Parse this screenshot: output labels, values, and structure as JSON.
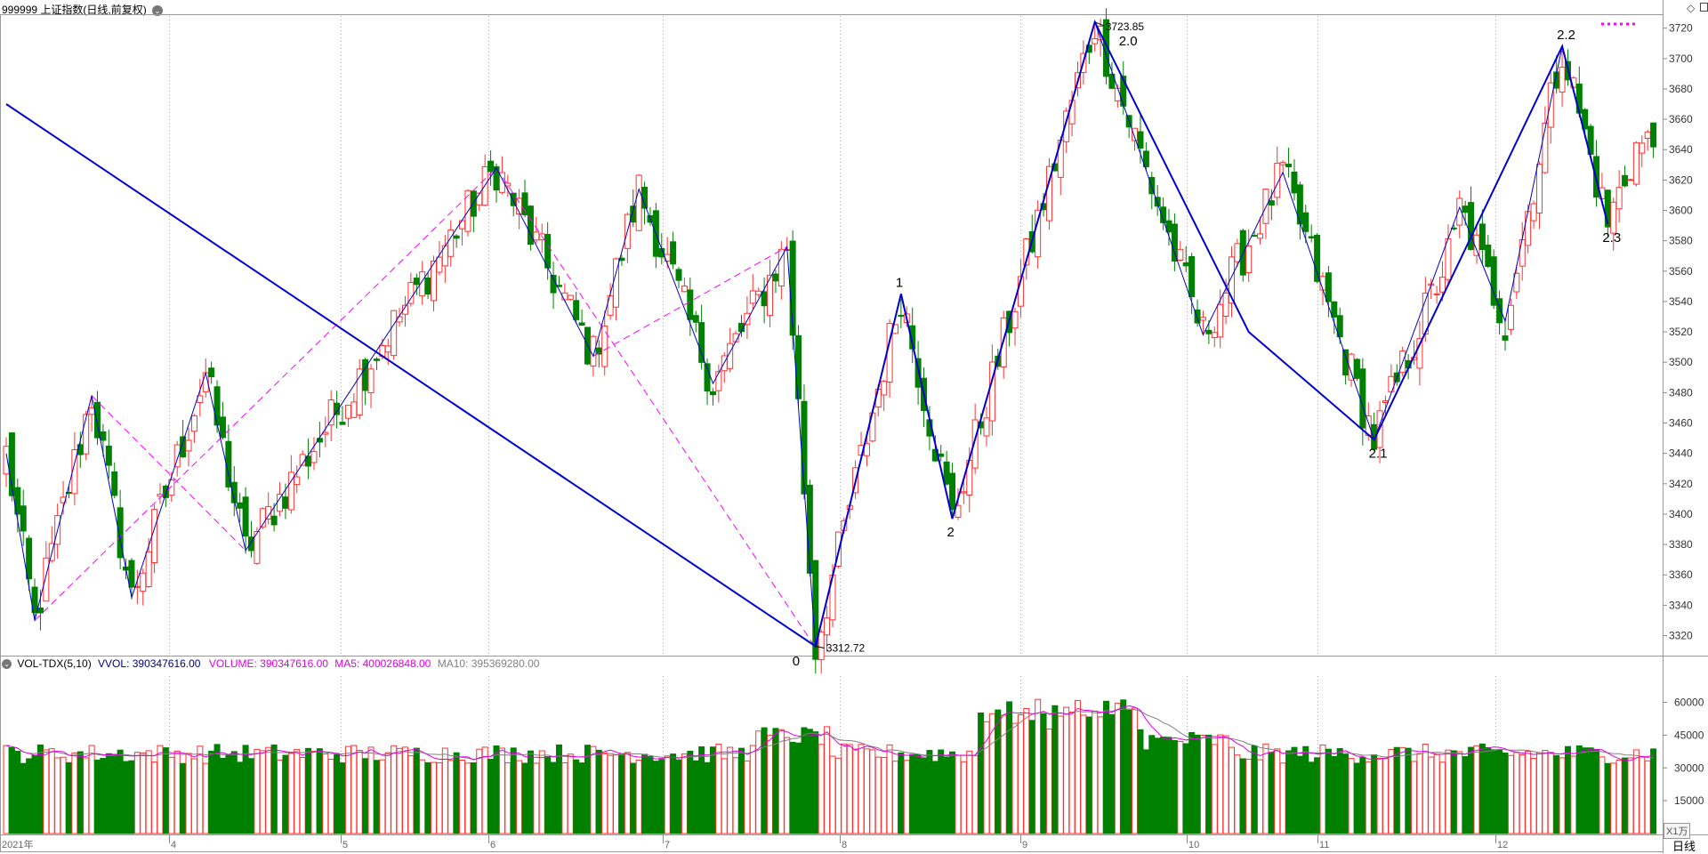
{
  "header": {
    "title": "999999 上证指数(日线,前复权)",
    "dropdown_icon": "chevron-down-icon",
    "right_icons": [
      "diamond-icon",
      "window-toggle-icon"
    ]
  },
  "price_axis": {
    "ticks": [
      "3720",
      "3700",
      "3680",
      "3660",
      "3640",
      "3620",
      "3600",
      "3580",
      "3560",
      "3540",
      "3520",
      "3500",
      "3480",
      "3460",
      "3440",
      "3420",
      "3400",
      "3380",
      "3360",
      "3340",
      "3320"
    ],
    "range": [
      3308,
      3728
    ]
  },
  "indicator": {
    "name": "VOL-TDX(5,10)",
    "vvol": "VVOL: 390347616.00",
    "volume": "VOLUME: 390347616.00",
    "ma5": "MA5: 400026848.00",
    "ma10": "MA10: 395369280.00",
    "ticks": [
      "60000",
      "45000",
      "30000",
      "15000"
    ],
    "unit": "X1万"
  },
  "date_axis": {
    "labels": [
      "2021年",
      "4",
      "5",
      "6",
      "7",
      "8",
      "9",
      "10",
      "11",
      "12"
    ],
    "period_button": "日线"
  },
  "annotations": {
    "high_value": "3723.85",
    "low_value": "3312.72",
    "wave_labels": [
      {
        "text": "0",
        "idx": 142,
        "price": 3312
      },
      {
        "text": "1",
        "idx": 157,
        "price": 3545
      },
      {
        "text": "2",
        "idx": 166,
        "price": 3397
      },
      {
        "text": "2.0",
        "idx": 191,
        "price": 3724
      },
      {
        "text": "2.1",
        "idx": 240,
        "price": 3449
      },
      {
        "text": "2.2",
        "idx": 273,
        "price": 3708
      },
      {
        "text": "2.3",
        "idx": 281,
        "price": 3591
      }
    ]
  },
  "colors": {
    "up": "#ff3232",
    "down": "#008000",
    "zigzag": "#0000cc",
    "dashed": "#ff00ff",
    "ma5": "#e000e0",
    "ma10": "#808080",
    "grid": "#b0b0b0"
  },
  "chart_data": {
    "type": "candlestick",
    "ylim": [
      3308,
      3728
    ],
    "pivots": [
      [
        0,
        3440
      ],
      [
        5,
        3330
      ],
      [
        15,
        3478
      ],
      [
        22,
        3345
      ],
      [
        35,
        3493
      ],
      [
        42,
        3376
      ],
      [
        86,
        3628
      ],
      [
        103,
        3504
      ],
      [
        111,
        3614
      ],
      [
        124,
        3486
      ],
      [
        137,
        3576
      ],
      [
        142,
        3312
      ],
      [
        157,
        3545
      ],
      [
        166,
        3397
      ],
      [
        191,
        3724
      ],
      [
        210,
        3518
      ],
      [
        224,
        3625
      ],
      [
        240,
        3449
      ],
      [
        255,
        3602
      ],
      [
        254,
        3580
      ],
      [
        263,
        3527
      ],
      [
        273,
        3708
      ],
      [
        281,
        3591
      ],
      [
        286,
        3642
      ]
    ],
    "zigzag_thick": [
      [
        0,
        3670
      ],
      [
        142,
        3313
      ],
      [
        157,
        3545
      ],
      [
        166,
        3397
      ],
      [
        191,
        3724
      ],
      [
        218,
        3520
      ],
      [
        240,
        3449
      ],
      [
        273,
        3708
      ],
      [
        281,
        3591
      ]
    ],
    "zigzag_thin": [
      [
        0,
        3440
      ],
      [
        5,
        3330
      ],
      [
        15,
        3478
      ],
      [
        22,
        3345
      ],
      [
        35,
        3493
      ],
      [
        42,
        3376
      ],
      [
        86,
        3628
      ],
      [
        103,
        3504
      ],
      [
        111,
        3614
      ],
      [
        124,
        3486
      ],
      [
        137,
        3576
      ],
      [
        142,
        3312
      ],
      [
        157,
        3545
      ],
      [
        166,
        3397
      ],
      [
        191,
        3724
      ],
      [
        210,
        3518
      ],
      [
        224,
        3625
      ],
      [
        240,
        3449
      ],
      [
        255,
        3602
      ],
      [
        263,
        3527
      ],
      [
        273,
        3708
      ],
      [
        281,
        3591
      ]
    ],
    "dashed_lines": [
      [
        [
          5,
          3330
        ],
        [
          86,
          3628
        ]
      ],
      [
        [
          15,
          3478
        ],
        [
          42,
          3376
        ]
      ],
      [
        [
          86,
          3628
        ],
        [
          142,
          3312
        ]
      ],
      [
        [
          103,
          3504
        ],
        [
          137,
          3576
        ]
      ]
    ]
  }
}
